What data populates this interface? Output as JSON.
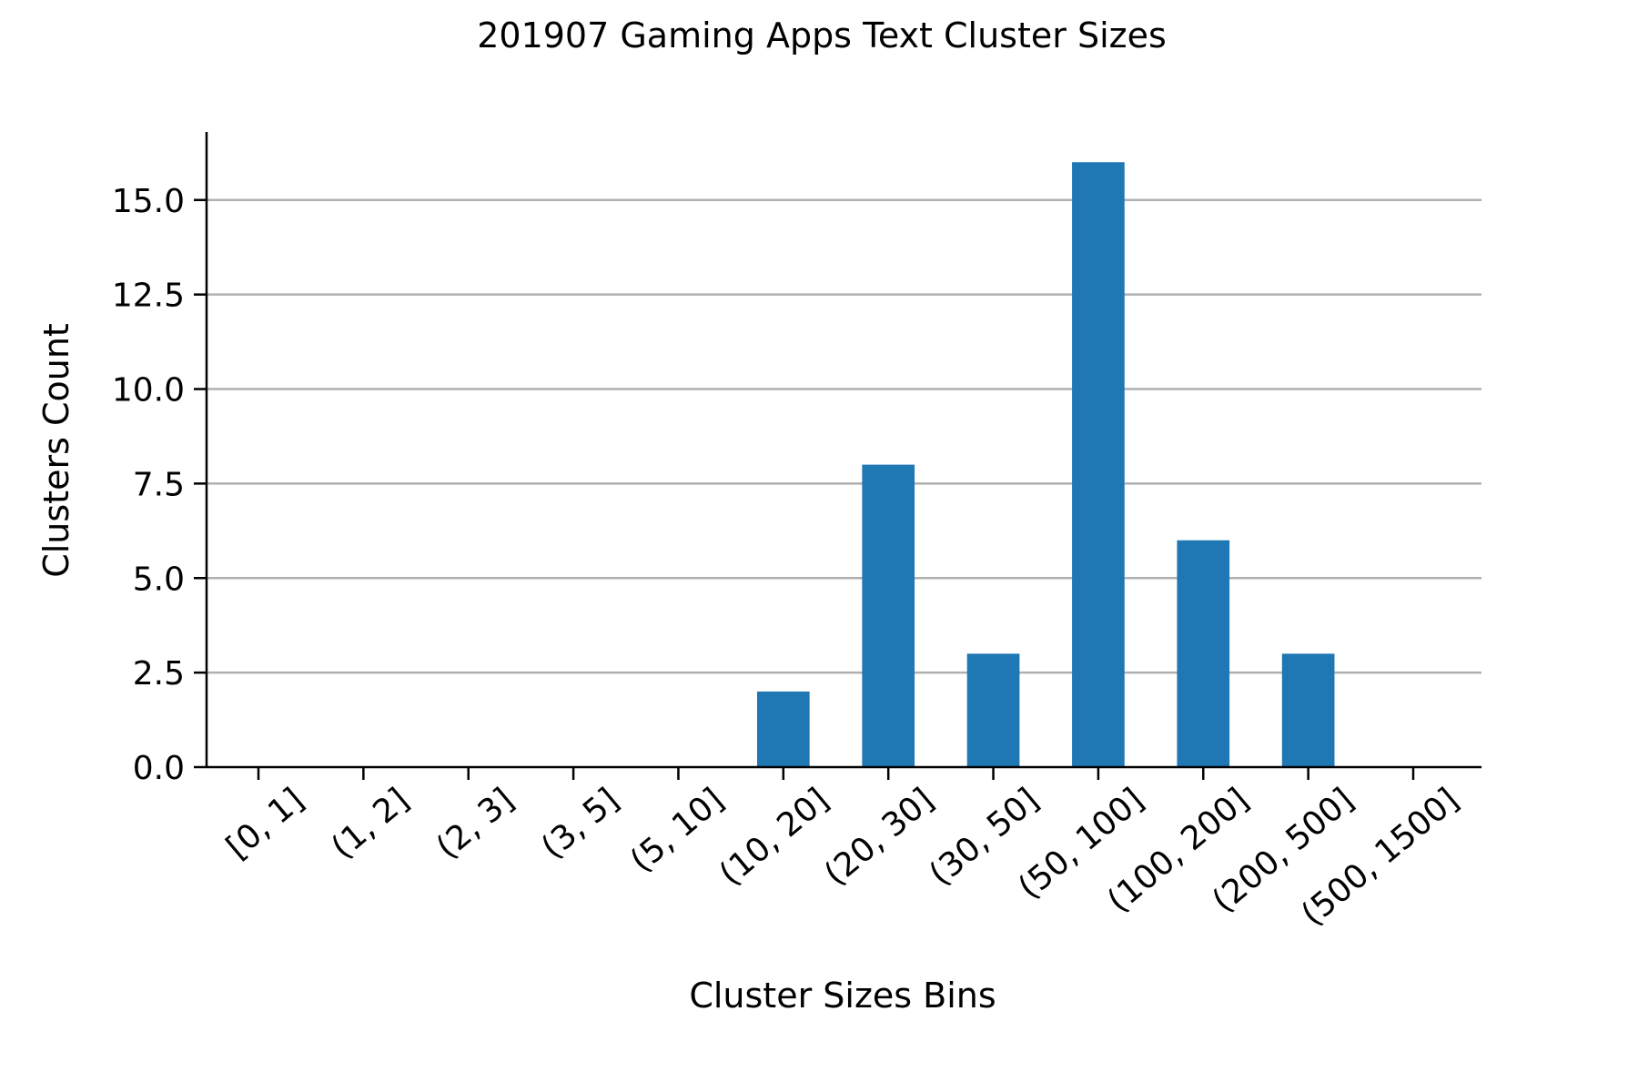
{
  "chart_data": {
    "type": "bar",
    "title": "201907 Gaming Apps Text Cluster Sizes",
    "xlabel": "Cluster Sizes Bins",
    "ylabel": "Clusters Count",
    "categories": [
      "[0, 1]",
      "(1, 2]",
      "(2, 3]",
      "(3, 5]",
      "(5, 10]",
      "(10, 20]",
      "(20, 30]",
      "(30, 50]",
      "(50, 100]",
      "(100, 200]",
      "(200, 500]",
      "(500, 1500]"
    ],
    "values": [
      0,
      0,
      0,
      0,
      0,
      2,
      8,
      3,
      16,
      6,
      3,
      0
    ],
    "ylim": [
      0,
      16.8
    ],
    "yticks": [
      0.0,
      2.5,
      5.0,
      7.5,
      10.0,
      12.5,
      15.0
    ],
    "ytick_labels": [
      "0.0",
      "2.5",
      "5.0",
      "7.5",
      "10.0",
      "12.5",
      "15.0"
    ],
    "grid": "horizontal",
    "bar_color": "#1f77b4",
    "grid_color": "#b0b0b0",
    "spines": [
      "left",
      "bottom"
    ]
  }
}
